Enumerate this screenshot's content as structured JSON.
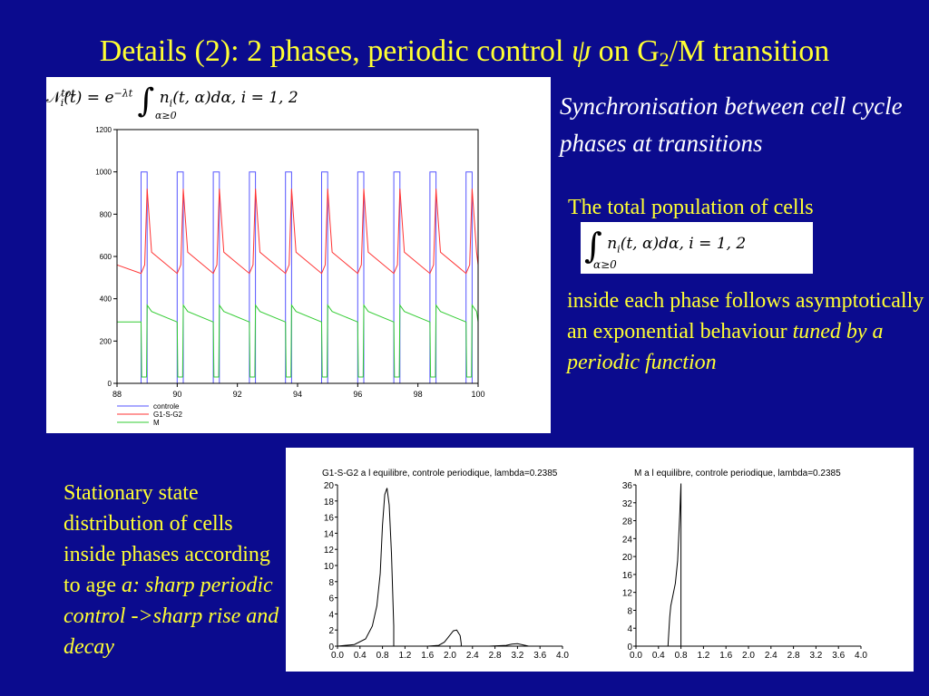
{
  "title": {
    "prefix": "Details (2): 2 phases, periodic control ",
    "psi": "ψ",
    "mid": " on G",
    "sub": "2",
    "suffix": "/M transition"
  },
  "formula_top": {
    "lhs": "𝒩",
    "sup": "tot",
    "sub": "i",
    "mid": "(t) = e",
    "exp": "−λt",
    "integrand": "n",
    "isub": "i",
    "rest": "(t, α)dα,    i = 1, 2",
    "lower": "α≥0"
  },
  "formula_mid": {
    "integrand": "n",
    "isub": "i",
    "rest": "(t, α)dα,    i = 1, 2",
    "lower": "α≥0"
  },
  "right_text": {
    "sync": "Synchronisation between cell cycle phases at transitions",
    "total": "The total population of cells",
    "inside_a": "inside each phase follows asymptotically an exponential behaviour ",
    "inside_b": "tuned by a periodic function"
  },
  "left_text": {
    "a": "Stationary state distribution of cells inside phases according to age ",
    "b": "a: sharp periodic control ->sharp rise and decay"
  },
  "chart_data": [
    {
      "type": "line",
      "title": "",
      "xlabel": "",
      "ylabel": "",
      "xlim": [
        88,
        100
      ],
      "ylim": [
        0,
        1200
      ],
      "x_ticks": [
        "88",
        "90",
        "92",
        "94",
        "96",
        "98",
        "100"
      ],
      "y_ticks": [
        "0",
        "200",
        "400",
        "600",
        "800",
        "1000",
        "1200"
      ],
      "legend_placement": "bottom-left",
      "period": 1.2,
      "first_on": 88.8,
      "on_width": 0.2,
      "series": [
        {
          "name": "controle",
          "color": "#5555ff",
          "shape": "pulse",
          "low": 0,
          "high": 1000
        },
        {
          "name": "G1-S-G2",
          "color": "#ff3333",
          "shape": "sawtooth",
          "trough": 560,
          "peak": 920,
          "after": 620,
          "before": 520
        },
        {
          "name": "M",
          "color": "#33cc33",
          "shape": "sawtooth",
          "trough": 300,
          "peak": 370,
          "after": 340,
          "before": 290,
          "drop": 30
        }
      ]
    },
    {
      "type": "line",
      "title": "G1-S-G2 a l equilibre, controle periodique, lambda=0.2385",
      "xlabel": "",
      "ylabel": "",
      "xlim": [
        0,
        4.0
      ],
      "ylim": [
        0,
        20
      ],
      "x_ticks": [
        "0.0",
        "0.4",
        "0.8",
        "1.2",
        "1.6",
        "2.0",
        "2.4",
        "2.8",
        "3.2",
        "3.6",
        "4.0"
      ],
      "y_ticks": [
        "0",
        "2",
        "4",
        "6",
        "8",
        "10",
        "12",
        "14",
        "16",
        "18",
        "20"
      ],
      "series": [
        {
          "name": "",
          "color": "#000000",
          "x": [
            0,
            0.3,
            0.5,
            0.62,
            0.7,
            0.76,
            0.8,
            0.84,
            0.88,
            0.92,
            0.96,
            1.0,
            1.0,
            1.6,
            1.8,
            1.9,
            1.98,
            2.06,
            2.12,
            2.18,
            2.2,
            2.2,
            2.7,
            3.0,
            3.1,
            3.2,
            3.4,
            4.0
          ],
          "y": [
            0,
            0.2,
            0.9,
            2.5,
            5.0,
            9.0,
            15.0,
            18.8,
            19.6,
            17.5,
            11.5,
            2.5,
            0,
            0,
            0.1,
            0.5,
            1.2,
            1.9,
            2.0,
            1.3,
            0.3,
            0,
            0,
            0.1,
            0.25,
            0.3,
            0,
            0
          ]
        }
      ]
    },
    {
      "type": "line",
      "title": "M a l equilibre, controle periodique, lambda=0.2385",
      "xlabel": "",
      "ylabel": "",
      "xlim": [
        0,
        4.0
      ],
      "ylim": [
        0,
        36
      ],
      "x_ticks": [
        "0.0",
        "0.4",
        "0.8",
        "1.2",
        "1.6",
        "2.0",
        "2.4",
        "2.8",
        "3.2",
        "3.6",
        "4.0"
      ],
      "y_ticks": [
        "0",
        "4",
        "8",
        "12",
        "16",
        "20",
        "24",
        "28",
        "32",
        "36"
      ],
      "series": [
        {
          "name": "",
          "color": "#000000",
          "x": [
            0,
            0.57,
            0.6,
            0.62,
            0.66,
            0.7,
            0.74,
            0.78,
            0.8,
            0.8,
            4.0
          ],
          "y": [
            0,
            0,
            6.5,
            9.0,
            11.5,
            14.0,
            19.0,
            30.0,
            36.5,
            0,
            0
          ]
        }
      ]
    }
  ]
}
